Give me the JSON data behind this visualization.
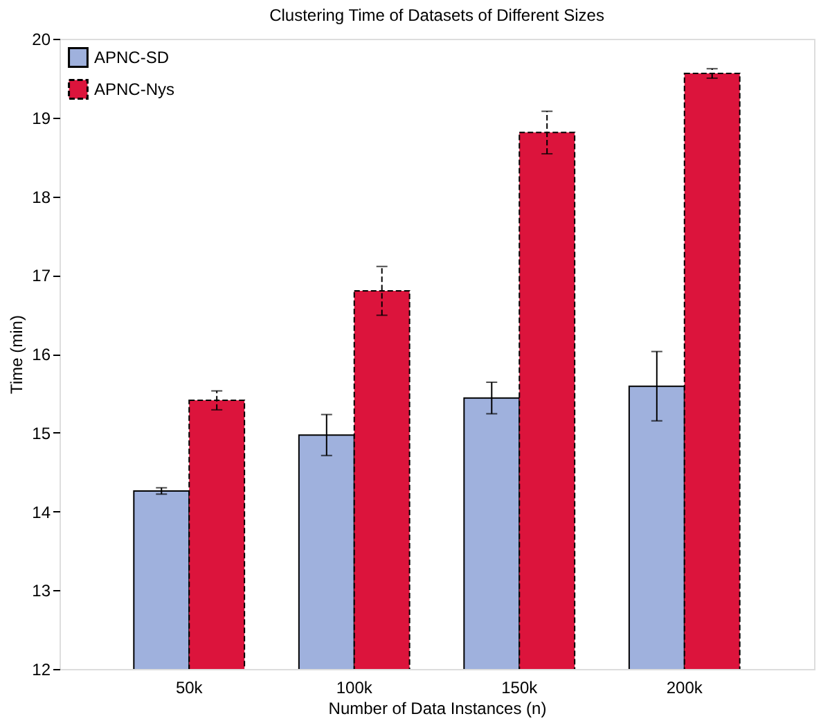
{
  "chart_data": {
    "type": "bar",
    "title": "Clustering Time of Datasets of Different Sizes",
    "xlabel": "Number of Data Instances (n)",
    "ylabel": "Time (min)",
    "categories": [
      "50k",
      "100k",
      "150k",
      "200k"
    ],
    "series": [
      {
        "name": "APNC-SD",
        "color": "#9fb1dd",
        "values": [
          14.26,
          14.97,
          15.44,
          15.59
        ],
        "errors": [
          0.04,
          0.26,
          0.2,
          0.44
        ]
      },
      {
        "name": "APNC-Nys",
        "color": "#dc143c",
        "values": [
          15.41,
          16.8,
          18.81,
          19.56
        ],
        "errors": [
          0.12,
          0.31,
          0.27,
          0.06
        ],
        "line_style": "dashed"
      }
    ],
    "ylim": [
      12,
      20
    ],
    "yticks": [
      12,
      13,
      14,
      15,
      16,
      17,
      18,
      19,
      20
    ],
    "grid": false,
    "legend": "top left"
  }
}
